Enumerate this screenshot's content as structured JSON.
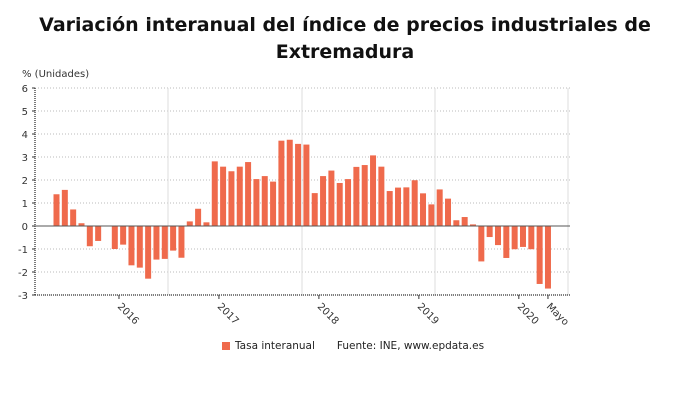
{
  "chart_data": {
    "type": "bar",
    "title": "Variación interanual del índice de precios industriales de Extremadura",
    "ylabel": "% (Unidades)",
    "ylim": [
      -3,
      6
    ],
    "yticks": [
      6,
      5,
      4,
      3,
      2,
      1,
      0,
      -1,
      -2,
      -3
    ],
    "xtick_labels": [
      {
        "label": "2016",
        "index": 7
      },
      {
        "label": "2017",
        "index": 19
      },
      {
        "label": "2018",
        "index": 31
      },
      {
        "label": "2019",
        "index": 43
      },
      {
        "label": "2020",
        "index": 55
      },
      {
        "label": "Mayo",
        "index": 59
      }
    ],
    "grid": true,
    "bar_color": "#ef6a4c",
    "series": [
      {
        "name": "Tasa interanual",
        "values": [
          1.38,
          1.57,
          0.72,
          0.12,
          -0.88,
          -0.65,
          0.0,
          -1.0,
          -0.81,
          -1.71,
          -1.81,
          -2.29,
          -1.46,
          -1.43,
          -1.07,
          -1.38,
          0.2,
          0.75,
          0.16,
          2.81,
          2.58,
          2.38,
          2.58,
          2.78,
          2.04,
          2.17,
          1.93,
          3.71,
          3.75,
          3.57,
          3.54,
          1.43,
          2.17,
          2.41,
          1.87,
          2.04,
          2.57,
          2.65,
          3.07,
          2.58,
          1.52,
          1.67,
          1.68,
          1.99,
          1.42,
          0.94,
          1.59,
          1.19,
          0.25,
          0.39,
          0.07,
          -1.54,
          -0.48,
          -0.83,
          -1.39,
          -1.01,
          -0.91,
          -1.01,
          -2.52,
          -2.72
        ]
      }
    ],
    "legend_position": "bottom"
  },
  "title_line1": "Variación interanual del índice de precios industriales de",
  "title_line2": "Extremadura",
  "legend": {
    "series_label": "Tasa interanual",
    "source": "Fuente: INE, www.epdata.es"
  }
}
